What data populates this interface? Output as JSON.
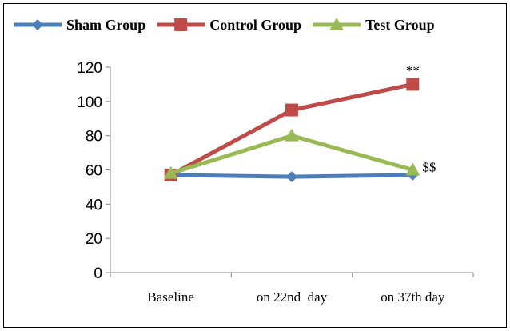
{
  "chart_data": {
    "type": "line",
    "categories": [
      "Baseline",
      "on 22nd  day",
      "on 37th day"
    ],
    "series": [
      {
        "name": "Sham Group",
        "values": [
          57,
          56,
          57
        ],
        "color": "#4a7ebb",
        "marker": "diamond"
      },
      {
        "name": "Control Group",
        "values": [
          57,
          95,
          110
        ],
        "color": "#be4b48",
        "marker": "square"
      },
      {
        "name": "Test Group",
        "values": [
          58,
          80,
          60
        ],
        "color": "#98b954",
        "marker": "triangle"
      }
    ],
    "ylim": [
      0,
      120
    ],
    "yticks": [
      0,
      20,
      40,
      60,
      80,
      100,
      120
    ],
    "grid": false,
    "legend_position": "top",
    "annotations": [
      {
        "text": "**",
        "category_index": 2,
        "value": 110,
        "placement": "above"
      },
      {
        "text": "$$",
        "category_index": 2,
        "value": 60,
        "placement": "right"
      }
    ]
  }
}
